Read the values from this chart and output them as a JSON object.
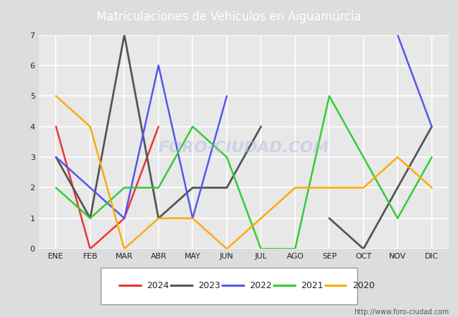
{
  "title": "Matriculaciones de Vehiculos en Aiguamúrcia",
  "months": [
    "ENE",
    "FEB",
    "MAR",
    "ABR",
    "MAY",
    "JUN",
    "JUL",
    "AGO",
    "SEP",
    "OCT",
    "NOV",
    "DIC"
  ],
  "series": {
    "2024": {
      "values": [
        4,
        0,
        1,
        4,
        null,
        null,
        null,
        null,
        null,
        null,
        null,
        null
      ],
      "color": "#ee3333",
      "linewidth": 1.8
    },
    "2023": {
      "values": [
        3,
        1,
        7,
        1,
        2,
        2,
        4,
        null,
        1,
        0,
        2,
        4
      ],
      "color": "#555555",
      "linewidth": 2.0
    },
    "2022": {
      "values": [
        3,
        2,
        1,
        6,
        1,
        5,
        null,
        null,
        null,
        null,
        7,
        4
      ],
      "color": "#5555ee",
      "linewidth": 1.8
    },
    "2021": {
      "values": [
        2,
        1,
        2,
        2,
        4,
        3,
        0,
        0,
        5,
        3,
        1,
        3
      ],
      "color": "#33cc33",
      "linewidth": 1.8
    },
    "2020": {
      "values": [
        5,
        4,
        0,
        1,
        1,
        0,
        1,
        2,
        2,
        2,
        3,
        2
      ],
      "color": "#ffaa00",
      "linewidth": 1.8
    }
  },
  "ylim": [
    0.0,
    7.0
  ],
  "yticks": [
    0.0,
    1.0,
    2.0,
    3.0,
    4.0,
    5.0,
    6.0,
    7.0
  ],
  "bg_color": "#dddddd",
  "plot_bg": "#e8e8e8",
  "header_bg": "#5577cc",
  "grid_color": "#ffffff",
  "watermark_text": "FORO-CIUDAD.COM",
  "watermark_color": "#aabbdd",
  "watermark_alpha": 0.45,
  "url": "http://www.foro-ciudad.com",
  "legend_years": [
    "2024",
    "2023",
    "2022",
    "2021",
    "2020"
  ],
  "title_fontsize": 12,
  "tick_fontsize": 8,
  "legend_fontsize": 9
}
